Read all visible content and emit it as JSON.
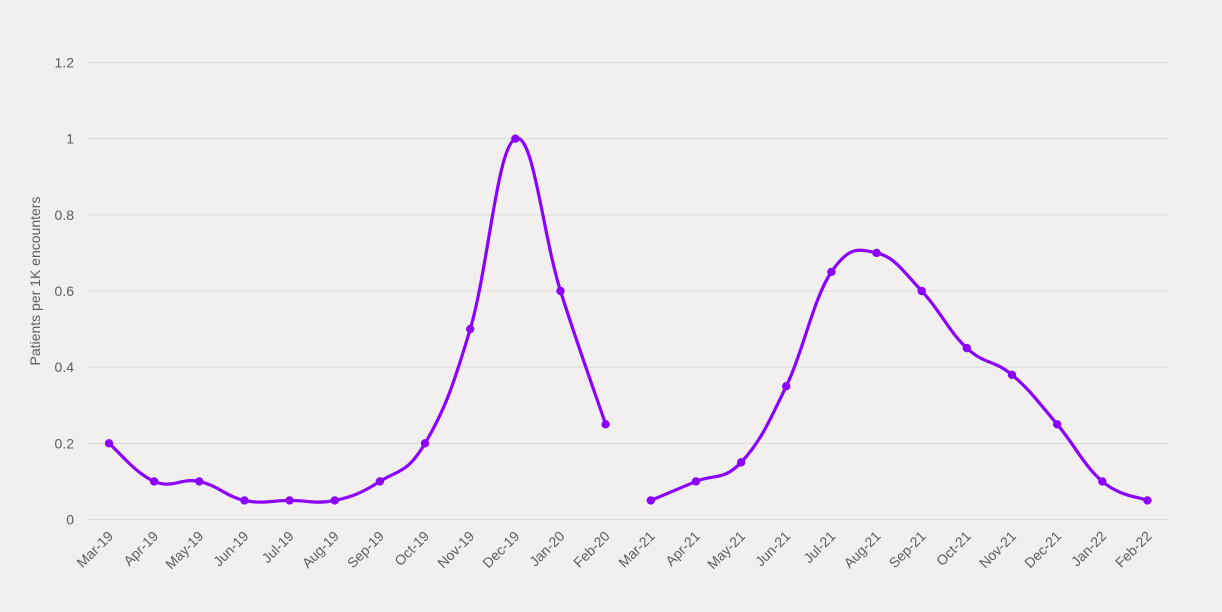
{
  "chart_data": {
    "type": "line",
    "title": "",
    "xlabel": "",
    "ylabel": "Patients per 1K encounters",
    "ylim": [
      0,
      1.2
    ],
    "yticks": [
      "0",
      "0.2",
      "0.4",
      "0.6",
      "0.8",
      "1",
      "1.2"
    ],
    "grid": true,
    "legend": "none",
    "categories": [
      "Mar-19",
      "Apr-19",
      "May-19",
      "Jun-19",
      "Jul-19",
      "Aug-19",
      "Sep-19",
      "Oct-19",
      "Nov-19",
      "Dec-19",
      "Jan-20",
      "Feb-20",
      "Mar-21",
      "Apr-21",
      "May-21",
      "Jun-21",
      "Jul-21",
      "Aug-21",
      "Sep-21",
      "Oct-21",
      "Nov-21",
      "Dec-21",
      "Jan-22",
      "Feb-22"
    ],
    "segments": [
      {
        "categories": [
          "Mar-19",
          "Apr-19",
          "May-19",
          "Jun-19",
          "Jul-19",
          "Aug-19",
          "Sep-19",
          "Oct-19",
          "Nov-19",
          "Dec-19",
          "Jan-20",
          "Feb-20"
        ],
        "values": [
          0.2,
          0.1,
          0.1,
          0.05,
          0.05,
          0.05,
          0.1,
          0.2,
          0.5,
          1.0,
          0.6,
          0.25
        ]
      },
      {
        "categories": [
          "Mar-21",
          "Apr-21",
          "May-21",
          "Jun-21",
          "Jul-21",
          "Aug-21",
          "Sep-21",
          "Oct-21",
          "Nov-21",
          "Dec-21",
          "Jan-22",
          "Feb-22"
        ],
        "values": [
          0.05,
          0.1,
          0.15,
          0.35,
          0.65,
          0.7,
          0.6,
          0.45,
          0.38,
          0.25,
          0.1,
          0.05
        ]
      }
    ],
    "color": "#8b00ff"
  }
}
